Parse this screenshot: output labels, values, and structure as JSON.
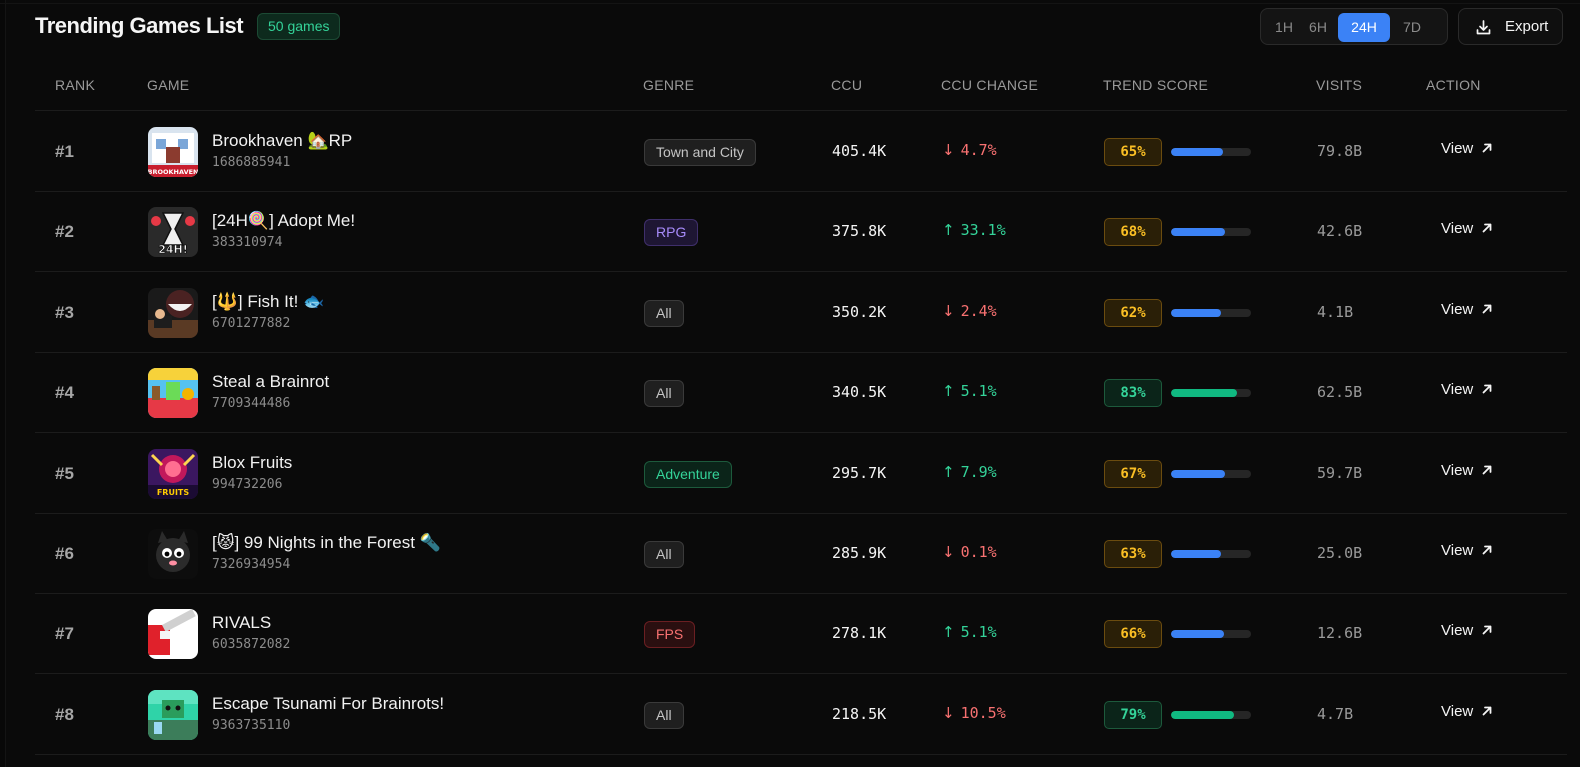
{
  "title": "Trending Games List",
  "count_badge": "50 games",
  "time_ranges": [
    {
      "label": "1H",
      "active": false
    },
    {
      "label": "6H",
      "active": false
    },
    {
      "label": "24H",
      "active": true
    },
    {
      "label": "7D",
      "active": false
    }
  ],
  "export_label": "Export",
  "columns": {
    "rank": "RANK",
    "game": "GAME",
    "genre": "GENRE",
    "ccu": "CCU",
    "ccu_change": "CCU CHANGE",
    "trend_score": "TREND SCORE",
    "visits": "VISITS",
    "action": "ACTION"
  },
  "rows": [
    {
      "rank": "#1",
      "name": "Brookhaven 🏡RP",
      "id": "1686885941",
      "genre": "Town and City",
      "genre_style": "gray",
      "ccu": "405.4K",
      "change_dir": "down",
      "change": "4.7%",
      "score_label": "65%",
      "score": 65,
      "score_color": "amber",
      "visits": "79.8B",
      "action": "View",
      "thumb_text": "BROOKHAVEN"
    },
    {
      "rank": "#2",
      "name": "[24H🍭] Adopt Me!",
      "id": "383310974",
      "genre": "RPG",
      "genre_style": "purple",
      "ccu": "375.8K",
      "change_dir": "up",
      "change": "33.1%",
      "score_label": "68%",
      "score": 68,
      "score_color": "amber",
      "visits": "42.6B",
      "action": "View",
      "thumb_text": "24H!"
    },
    {
      "rank": "#3",
      "name": "[🔱] Fish It! 🐟",
      "id": "6701277882",
      "genre": "All",
      "genre_style": "gray",
      "ccu": "350.2K",
      "change_dir": "down",
      "change": "2.4%",
      "score_label": "62%",
      "score": 62,
      "score_color": "amber",
      "visits": "4.1B",
      "action": "View",
      "thumb_text": ""
    },
    {
      "rank": "#4",
      "name": "Steal a Brainrot",
      "id": "7709344486",
      "genre": "All",
      "genre_style": "gray",
      "ccu": "340.5K",
      "change_dir": "up",
      "change": "5.1%",
      "score_label": "83%",
      "score": 83,
      "score_color": "green",
      "visits": "62.5B",
      "action": "View",
      "thumb_text": ""
    },
    {
      "rank": "#5",
      "name": "Blox Fruits",
      "id": "994732206",
      "genre": "Adventure",
      "genre_style": "green",
      "ccu": "295.7K",
      "change_dir": "up",
      "change": "7.9%",
      "score_label": "67%",
      "score": 67,
      "score_color": "amber",
      "visits": "59.7B",
      "action": "View",
      "thumb_text": "FRUITS"
    },
    {
      "rank": "#6",
      "name": "[😾] 99 Nights in the Forest 🔦",
      "id": "7326934954",
      "genre": "All",
      "genre_style": "gray",
      "ccu": "285.9K",
      "change_dir": "down",
      "change": "0.1%",
      "score_label": "63%",
      "score": 63,
      "score_color": "amber",
      "visits": "25.0B",
      "action": "View",
      "thumb_text": ""
    },
    {
      "rank": "#7",
      "name": "RIVALS",
      "id": "6035872082",
      "genre": "FPS",
      "genre_style": "red",
      "ccu": "278.1K",
      "change_dir": "up",
      "change": "5.1%",
      "score_label": "66%",
      "score": 66,
      "score_color": "amber",
      "visits": "12.6B",
      "action": "View",
      "thumb_text": ""
    },
    {
      "rank": "#8",
      "name": "Escape Tsunami For Brainrots!",
      "id": "9363735110",
      "genre": "All",
      "genre_style": "gray",
      "ccu": "218.5K",
      "change_dir": "down",
      "change": "10.5%",
      "score_label": "79%",
      "score": 79,
      "score_color": "green",
      "visits": "4.7B",
      "action": "View",
      "thumb_text": ""
    }
  ],
  "colors": {
    "accent_blue": "#3b82f6",
    "up_green": "#34d399",
    "down_red": "#f87171",
    "amber": "#fbbf24",
    "green_bar": "#10b981"
  }
}
